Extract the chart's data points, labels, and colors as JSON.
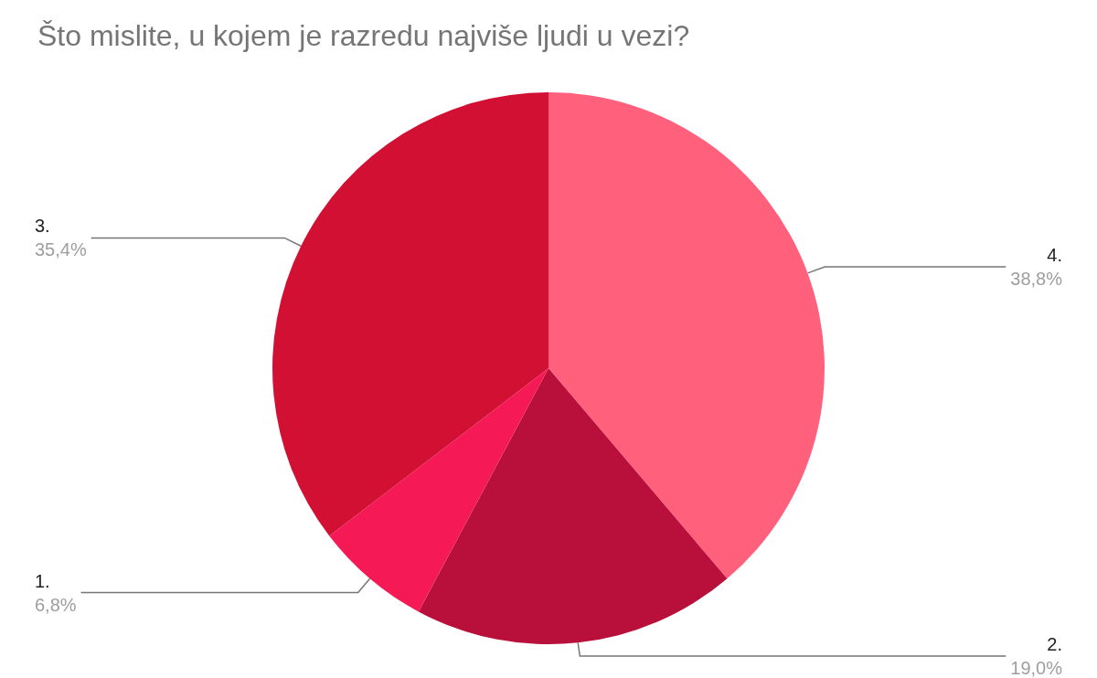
{
  "chart_data": {
    "type": "pie",
    "title": "Što mislite, u kojem je razredu najviše ljudi u vezi?",
    "categories": [
      "4.",
      "2.",
      "1.",
      "3."
    ],
    "values": [
      38.8,
      19.0,
      6.8,
      35.4
    ],
    "value_labels": [
      "38,8%",
      "19,0%",
      "6,8%",
      "35,4%"
    ],
    "colors": [
      "#ff607c",
      "#b90f3b",
      "#f51a55",
      "#d11033"
    ]
  }
}
